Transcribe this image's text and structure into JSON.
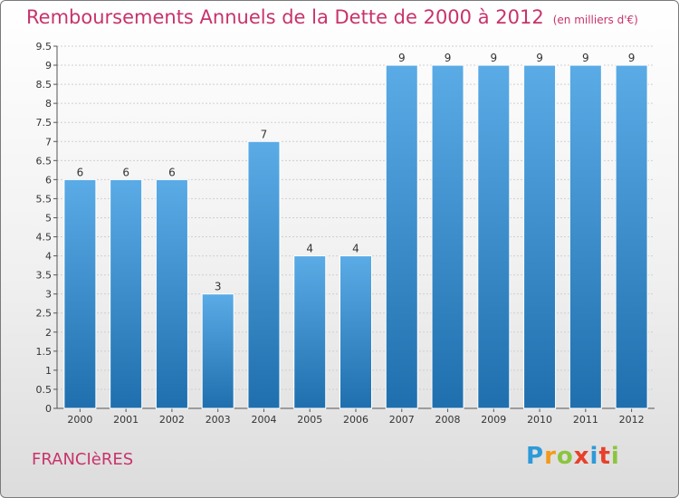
{
  "title": "Remboursements Annuels de la Dette de 2000 à 2012",
  "unit": "(en milliers d'€)",
  "commune": "FRANCIèRES",
  "logo": {
    "text": "Proxiti",
    "colors": [
      "#2e9ad8",
      "#f29a1a",
      "#8bc53f",
      "#e8402a",
      "#2e9ad8",
      "#e8402a",
      "#8bc53f"
    ]
  },
  "chart_data": {
    "type": "bar",
    "categories": [
      "2000",
      "2001",
      "2002",
      "2003",
      "2004",
      "2005",
      "2006",
      "2007",
      "2008",
      "2009",
      "2010",
      "2011",
      "2012"
    ],
    "values": [
      6,
      6,
      6,
      3,
      7,
      4,
      4,
      9,
      9,
      9,
      9,
      9,
      9
    ],
    "ylim": [
      0,
      9.5
    ],
    "yticks": [
      "0",
      "0.5",
      "1",
      "1.5",
      "2",
      "2.5",
      "3",
      "3.5",
      "4",
      "4.5",
      "5",
      "5.5",
      "6",
      "6.5",
      "7",
      "7.5",
      "8",
      "8.5",
      "9",
      "9.5"
    ],
    "grid": true,
    "bar_color_top": "#5aabe6",
    "bar_color_bottom": "#1f6fae"
  }
}
